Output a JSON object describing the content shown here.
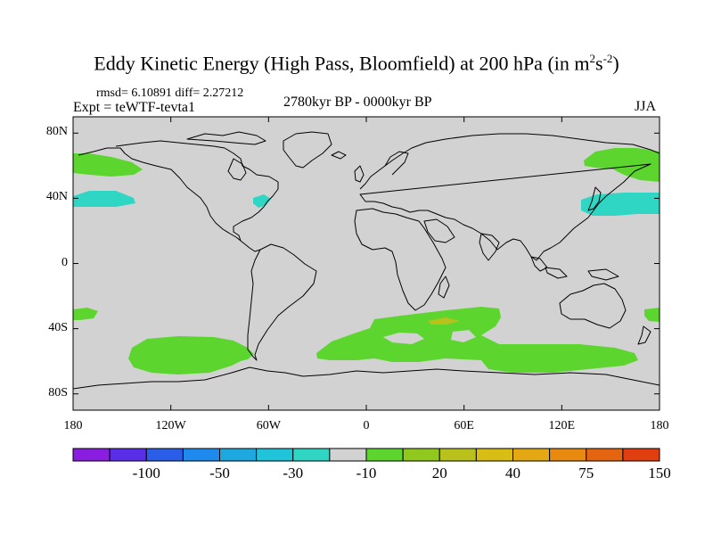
{
  "title": {
    "main": "Eddy Kinetic Energy (High Pass, Bloomfield) at 200 hPa (in m",
    "sup1": "2",
    "mid": "s",
    "sup2": "-2",
    "end": ")"
  },
  "stats": "rmsd= 6.10891 diff= 2.27212",
  "experiment": "Expt = teWTF-tevta1",
  "period": "2780kyr BP - 0000kyr BP",
  "season": "JJA",
  "axes": {
    "lat_ticks": [
      {
        "label": "80N",
        "lat": 80
      },
      {
        "label": "40N",
        "lat": 40
      },
      {
        "label": "0",
        "lat": 0
      },
      {
        "label": "40S",
        "lat": -40
      },
      {
        "label": "80S",
        "lat": -80
      }
    ],
    "lon_ticks": [
      {
        "label": "180",
        "lon": -180
      },
      {
        "label": "120W",
        "lon": -120
      },
      {
        "label": "60W",
        "lon": -60
      },
      {
        "label": "0",
        "lon": 0
      },
      {
        "label": "60E",
        "lon": 60
      },
      {
        "label": "120E",
        "lon": 120
      },
      {
        "label": "180",
        "lon": 180
      }
    ]
  },
  "colorbar": {
    "colors": [
      "#8a1ee0",
      "#5a2ee6",
      "#2a5ee8",
      "#1e8aee",
      "#1ea8e0",
      "#20c4d8",
      "#30d6c4",
      "#d2d2d2",
      "#5cd62e",
      "#90c81e",
      "#b8c21a",
      "#d8be14",
      "#e4a812",
      "#e88a10",
      "#e46410",
      "#e03e0e"
    ],
    "labels": [
      {
        "text": "-100",
        "index": 2
      },
      {
        "text": "-50",
        "index": 4
      },
      {
        "text": "-30",
        "index": 6
      },
      {
        "text": "-10",
        "index": 8
      },
      {
        "text": "20",
        "index": 10
      },
      {
        "text": "40",
        "index": 12
      },
      {
        "text": "75",
        "index": 14
      },
      {
        "text": "150",
        "index": 16
      }
    ]
  },
  "colors": {
    "background": "#d2d2d2",
    "positive": "#5cd62e",
    "negative": "#30d6c4",
    "strong_positive": "#b8c21a"
  }
}
